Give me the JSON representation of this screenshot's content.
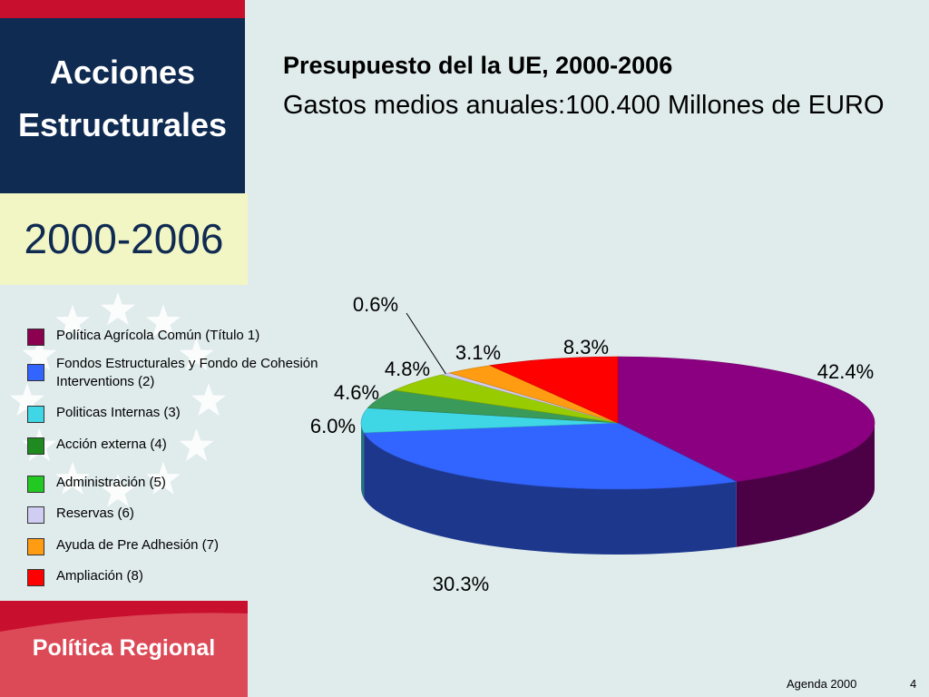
{
  "sidebar": {
    "title_line1": "Acciones",
    "title_line2": "Estructurales",
    "period": "2000-2006",
    "footer": "Política Regional"
  },
  "slide": {
    "title": "Presupuesto del la UE, 2000-2006",
    "subtitle": "Gastos medios anuales:100.400 Millones de EURO"
  },
  "footer": {
    "label": "Agenda 2000",
    "page": "4"
  },
  "colors": {
    "navy": "#0f2b52",
    "red": "#c8102e",
    "pale_yellow": "#f2f5c4",
    "background": "#e0ebec"
  },
  "legend": [
    {
      "label": "Política Agrícola Común (Título 1)",
      "color": "#8b004f"
    },
    {
      "label": "Fondos Estructurales y Fondo de Cohesión",
      "label2": "Interventions (2)",
      "color": "#3264ff"
    },
    {
      "label": "Politicas Internas (3)",
      "color": "#3fd6e6"
    },
    {
      "label": "Acción externa (4)",
      "color": "#1f8a1f"
    },
    {
      "label": "Administración (5)",
      "color": "#22c922"
    },
    {
      "label": "Reservas (6)",
      "color": "#cfcdf2"
    },
    {
      "label": "Ayuda de Pre Adhesión (7)",
      "color": "#ff9c11"
    },
    {
      "label": "Ampliación (8)",
      "color": "#ff0000"
    }
  ],
  "chart_data": {
    "type": "pie",
    "title": "",
    "categories": [
      "Política Agrícola Común (Título 1)",
      "Fondos Estructurales y Fondo de Cohesión Interventions (2)",
      "Politicas Internas (3)",
      "Acción externa (4)",
      "Administración (5)",
      "Reservas (6)",
      "Ayuda de Pre Adhesión (7)",
      "Ampliación (8)"
    ],
    "values": [
      42.4,
      30.3,
      6.0,
      4.6,
      4.8,
      0.6,
      3.1,
      8.3
    ],
    "labels": [
      "42.4%",
      "30.3%",
      "6.0%",
      "4.6%",
      "4.8%",
      "0.6%",
      "3.1%",
      "8.3%"
    ],
    "colors": [
      "#8b0080",
      "#3264ff",
      "#3fd6e6",
      "#3a9a5a",
      "#99cc00",
      "#cfcdf2",
      "#ff9c11",
      "#ff0000"
    ],
    "start_angle_deg": 0,
    "three_d": true
  }
}
